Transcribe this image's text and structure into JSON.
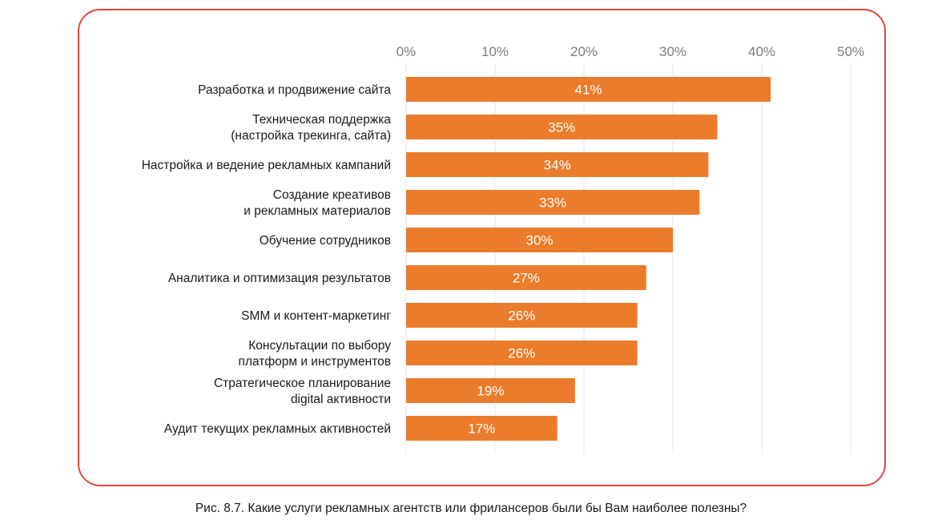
{
  "chart_data": {
    "type": "bar",
    "orientation": "horizontal",
    "title": "",
    "xlabel": "",
    "ylabel": "",
    "xlim": [
      0,
      50
    ],
    "grid": true,
    "ticks": [
      {
        "value": 0,
        "label": "0%"
      },
      {
        "value": 10,
        "label": "10%"
      },
      {
        "value": 20,
        "label": "20%"
      },
      {
        "value": 30,
        "label": "30%"
      },
      {
        "value": 40,
        "label": "40%"
      },
      {
        "value": 50,
        "label": "50%"
      }
    ],
    "categories": [
      [
        "Разработка и продвижение сайта"
      ],
      [
        "Техническая поддержка",
        "(настройка трекинга, сайта)"
      ],
      [
        "Настройка и ведение рекламных кампаний"
      ],
      [
        "Создание креативов",
        "и рекламных материалов"
      ],
      [
        "Обучение сотрудников"
      ],
      [
        "Аналитика и оптимизация результатов"
      ],
      [
        "SMM и контент-маркетинг"
      ],
      [
        "Консультации по выбору",
        "платформ и инструментов"
      ],
      [
        "Стратегическое планирование",
        "digital активности"
      ],
      [
        "Аудит текущих рекламных активностей"
      ]
    ],
    "values": [
      41,
      35,
      34,
      33,
      30,
      27,
      26,
      26,
      19,
      17
    ],
    "value_labels": [
      "41%",
      "35%",
      "34%",
      "33%",
      "30%",
      "27%",
      "26%",
      "26%",
      "19%",
      "17%"
    ],
    "colors": {
      "bar": "#ea7c2c",
      "grid": "#e6e6e6",
      "frame": "#e2473a"
    }
  },
  "caption": "Рис. 8.7. Какие услуги рекламных агентств или фрилансеров были бы Вам наиболее полезны?"
}
